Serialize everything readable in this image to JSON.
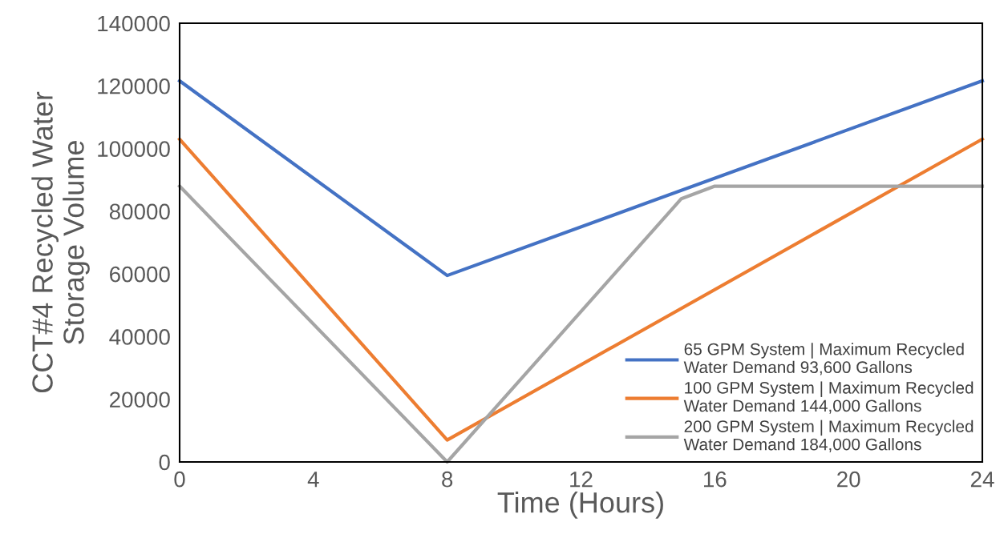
{
  "chart_data": {
    "type": "line",
    "xlabel": "Time (Hours)",
    "ylabel": "CCT#4 Recycled Water\nStorage Volume",
    "xlim": [
      0,
      24
    ],
    "xticks": [
      0,
      4,
      8,
      12,
      16,
      20,
      24
    ],
    "ylim": [
      0,
      140000
    ],
    "yticks": [
      0,
      20000,
      40000,
      60000,
      80000,
      100000,
      120000,
      140000
    ],
    "grid": false,
    "legend": "bottom right",
    "marker": "none",
    "line_style": "solid",
    "series": [
      {
        "name": "65 GPM System | Maximum Recycled\nWater Demand 93,600 Gallons",
        "color": "#4472c4",
        "x": [
          0,
          8,
          24
        ],
        "values": [
          121600,
          59500,
          121600
        ]
      },
      {
        "name": "100 GPM System | Maximum Recycled\nWater Demand 144,000 Gallons",
        "color": "#ed7d31",
        "x": [
          0,
          8,
          24
        ],
        "values": [
          103000,
          7000,
          103000
        ]
      },
      {
        "name": "200 GPM System | Maximum Recycled\nWater Demand 184,000 Gallons",
        "color": "#a5a5a5",
        "x": [
          0,
          8,
          15,
          16,
          24
        ],
        "values": [
          88000,
          0,
          84000,
          88000,
          88000
        ]
      }
    ]
  }
}
